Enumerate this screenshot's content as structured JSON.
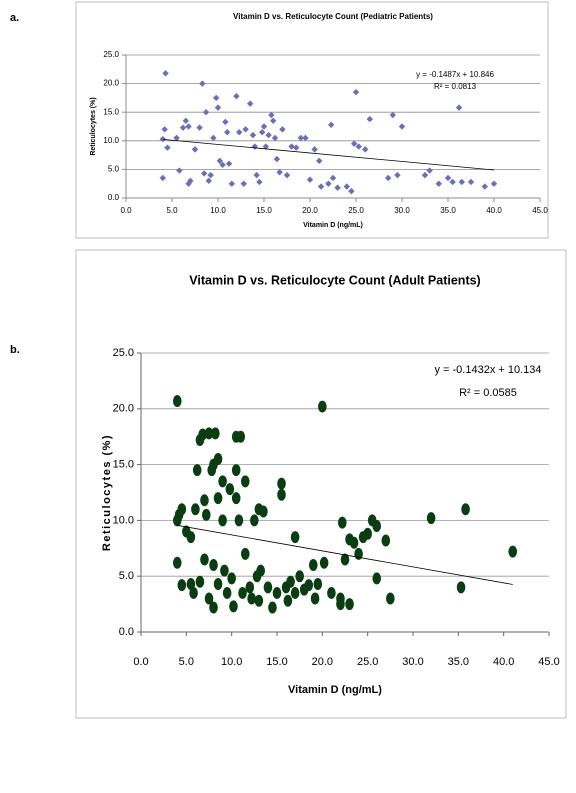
{
  "chart_data": [
    {
      "type": "scatter",
      "panel_label": "a.",
      "title": "Vitamin D vs. Reticulocyte Count (Pediatric Patients)",
      "x_label": "Vitamin D (ng/mL)",
      "y_label": "Reticulocytes (%)",
      "annotations": [
        "y = -0.1487x + 10.846",
        "R² = 0.0813"
      ],
      "color": "#6a6fb8",
      "marker": "diamond",
      "grid": true,
      "x": [
        4.3,
        4.0,
        4.2,
        4.5,
        4.0,
        5.5,
        5.8,
        6.2,
        6.5,
        6.8,
        7.0,
        6.8,
        7.5,
        8.0,
        8.3,
        8.5,
        8.7,
        9.0,
        9.2,
        9.5,
        9.8,
        10.0,
        10.2,
        10.5,
        10.8,
        11.0,
        11.2,
        11.5,
        12.0,
        12.3,
        12.8,
        13.0,
        13.5,
        13.8,
        14.0,
        14.2,
        14.5,
        14.8,
        15.0,
        15.2,
        15.5,
        15.8,
        16.0,
        16.2,
        16.4,
        16.7,
        17.0,
        17.5,
        18.0,
        18.5,
        19.0,
        19.5,
        20.0,
        20.5,
        21.0,
        21.2,
        22.0,
        22.3,
        22.5,
        23.0,
        24.0,
        24.5,
        24.8,
        25.0,
        25.3,
        26.0,
        26.5,
        28.5,
        29.0,
        29.5,
        30.0,
        32.5,
        33.0,
        34.0,
        35.0,
        35.5,
        36.2,
        36.5,
        37.5,
        39.0,
        40.0
      ],
      "values": [
        21.8,
        10.3,
        12.0,
        8.8,
        3.5,
        10.5,
        4.8,
        12.3,
        13.5,
        12.5,
        3.0,
        2.5,
        8.5,
        12.3,
        20.0,
        4.3,
        15.0,
        3.0,
        4.0,
        10.5,
        17.5,
        15.8,
        6.5,
        5.8,
        13.3,
        11.5,
        6.0,
        2.5,
        17.8,
        11.5,
        2.5,
        12.0,
        16.5,
        11.0,
        9.0,
        4.0,
        2.8,
        11.5,
        12.5,
        9.0,
        11.0,
        14.5,
        13.5,
        10.5,
        6.8,
        4.5,
        12.0,
        4.0,
        9.0,
        8.8,
        10.5,
        10.5,
        3.2,
        8.5,
        6.5,
        2.0,
        2.5,
        12.8,
        3.5,
        1.8,
        2.0,
        1.2,
        9.5,
        18.5,
        9.0,
        8.5,
        13.8,
        3.5,
        14.5,
        4.0,
        12.5,
        4.0,
        4.8,
        2.5,
        3.5,
        2.8,
        15.8,
        2.8,
        2.8,
        2.0,
        2.5
      ],
      "trendline": {
        "x": [
          4.0,
          40.0
        ],
        "y": [
          10.25,
          4.9
        ]
      },
      "xlim": [
        0,
        45
      ],
      "ylim": [
        0,
        25
      ],
      "xticks": [
        {
          "value": 0,
          "label": "0.0"
        },
        {
          "value": 5,
          "label": "5.0"
        },
        {
          "value": 10,
          "label": "10.0"
        },
        {
          "value": 15,
          "label": "15.0"
        },
        {
          "value": 20,
          "label": "20.0"
        },
        {
          "value": 25,
          "label": "25.0"
        },
        {
          "value": 30,
          "label": "30.0"
        },
        {
          "value": 35,
          "label": "35.0"
        },
        {
          "value": 40,
          "label": "40.0"
        },
        {
          "value": 45,
          "label": "45.0"
        }
      ],
      "yticks": [
        {
          "value": 0,
          "label": "0.0"
        },
        {
          "value": 5,
          "label": "5.0"
        },
        {
          "value": 10,
          "label": "10.0"
        },
        {
          "value": 15,
          "label": "15.0"
        },
        {
          "value": 20,
          "label": "20.0"
        },
        {
          "value": 25,
          "label": "25.0"
        }
      ]
    },
    {
      "type": "scatter",
      "panel_label": "b.",
      "title": "Vitamin D vs. Reticulocyte Count (Adult Patients)",
      "x_label": "Vitamin D (ng/mL)",
      "y_label": "Reticulocytes (%)",
      "annotations": [
        "y = -0.1432x + 10.134",
        "R² = 0.0585"
      ],
      "color": "#0b3d13",
      "marker": "ellipse",
      "grid": true,
      "x": [
        4.0,
        4.0,
        4.2,
        4.5,
        4.0,
        4.5,
        5.0,
        5.5,
        5.5,
        5.8,
        6.0,
        6.2,
        6.5,
        6.5,
        6.8,
        7.0,
        7.0,
        7.2,
        7.5,
        7.5,
        7.8,
        8.0,
        8.0,
        8.0,
        8.2,
        8.5,
        8.5,
        8.5,
        9.0,
        9.0,
        9.2,
        9.5,
        9.8,
        10.0,
        10.2,
        10.5,
        10.5,
        10.5,
        10.8,
        11.0,
        11.2,
        11.5,
        11.5,
        12.0,
        12.2,
        12.5,
        12.8,
        13.0,
        13.0,
        13.2,
        13.5,
        14.0,
        14.5,
        15.0,
        15.5,
        15.5,
        16.0,
        16.2,
        16.5,
        17.0,
        17.0,
        17.5,
        18.0,
        18.5,
        19.0,
        19.2,
        19.5,
        20.0,
        20.2,
        21.0,
        22.0,
        22.0,
        22.2,
        22.5,
        23.0,
        23.0,
        23.5,
        24.0,
        24.5,
        25.0,
        25.5,
        26.0,
        26.0,
        27.0,
        27.5,
        32.0,
        35.3,
        35.8,
        41.0
      ],
      "values": [
        20.7,
        10.0,
        10.5,
        11.0,
        6.2,
        4.2,
        9.0,
        8.5,
        4.3,
        3.5,
        11.0,
        14.5,
        17.2,
        4.5,
        17.7,
        11.8,
        6.5,
        10.5,
        17.8,
        3.0,
        14.5,
        15.0,
        6.0,
        2.2,
        17.8,
        15.5,
        12.0,
        4.3,
        13.5,
        10.0,
        5.5,
        3.5,
        12.8,
        4.8,
        2.3,
        17.5,
        14.5,
        12.0,
        10.0,
        17.5,
        3.5,
        13.5,
        7.0,
        4.0,
        3.0,
        10.0,
        5.0,
        11.0,
        2.8,
        5.5,
        10.8,
        4.0,
        2.2,
        3.5,
        13.3,
        12.3,
        4.0,
        2.8,
        4.5,
        8.5,
        3.5,
        5.0,
        3.8,
        4.2,
        6.0,
        3.0,
        4.3,
        20.2,
        6.2,
        3.5,
        3.0,
        2.5,
        9.8,
        6.5,
        8.3,
        2.5,
        8.0,
        7.0,
        8.5,
        8.8,
        10.0,
        4.8,
        9.5,
        8.2,
        3.0,
        10.2,
        4.0,
        11.0,
        7.2
      ],
      "trendline": {
        "x": [
          4.0,
          41.0
        ],
        "y": [
          9.56,
          4.26
        ]
      },
      "xlim": [
        0,
        45
      ],
      "ylim": [
        0,
        25
      ],
      "xticks": [
        {
          "value": 0,
          "label": "0.0"
        },
        {
          "value": 5,
          "label": "5.0"
        },
        {
          "value": 10,
          "label": "10.0"
        },
        {
          "value": 15,
          "label": "15.0"
        },
        {
          "value": 20,
          "label": "20.0"
        },
        {
          "value": 25,
          "label": "25.0"
        },
        {
          "value": 30,
          "label": "30.0"
        },
        {
          "value": 35,
          "label": "35.0"
        },
        {
          "value": 40,
          "label": "40.0"
        },
        {
          "value": 45,
          "label": "45.0"
        }
      ],
      "yticks": [
        {
          "value": 0,
          "label": "0.0"
        },
        {
          "value": 5,
          "label": "5.0"
        },
        {
          "value": 10,
          "label": "10.0"
        },
        {
          "value": 15,
          "label": "15.0"
        },
        {
          "value": 20,
          "label": "20.0"
        },
        {
          "value": 25,
          "label": "25.0"
        }
      ]
    }
  ]
}
